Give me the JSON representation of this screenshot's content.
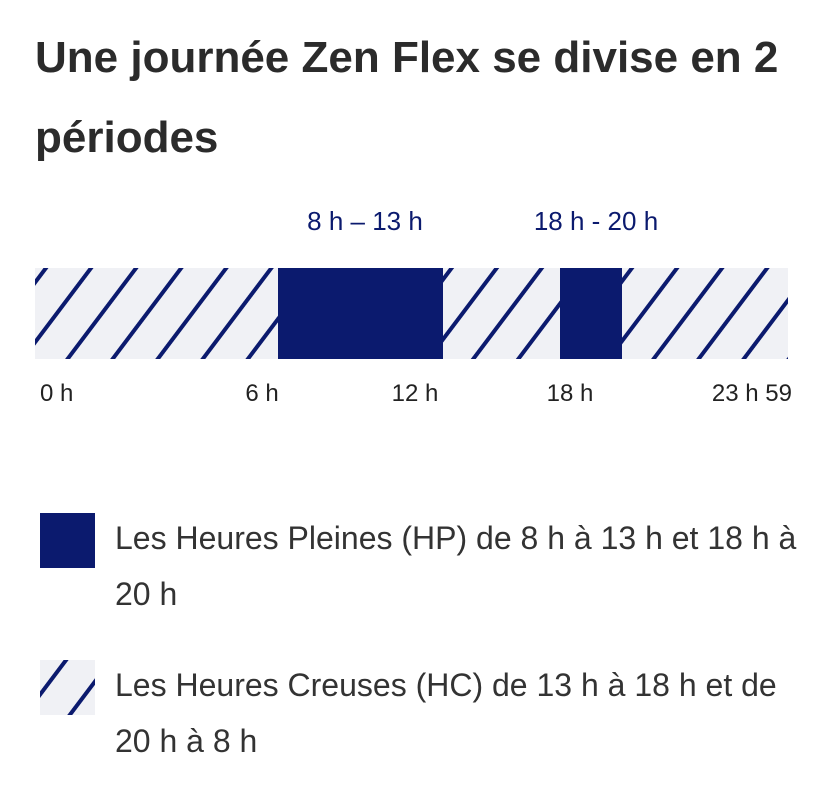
{
  "header": {
    "title": "Une journée Zen Flex se divise en 2 périodes"
  },
  "timeline": {
    "period_labels": [
      "8 h – 13 h",
      "18 h - 20 h"
    ],
    "axis_labels": [
      "0 h",
      "6 h",
      "12 h",
      "18 h",
      "23 h 59"
    ]
  },
  "legend": [
    {
      "label": "Les Heures Pleines (HP) de 8 h à 13 h et 18 h à 20 h"
    },
    {
      "label": "Les Heures Creuses (HC) de 13 h à 18 h et de 20 h à 8 h"
    }
  ]
}
